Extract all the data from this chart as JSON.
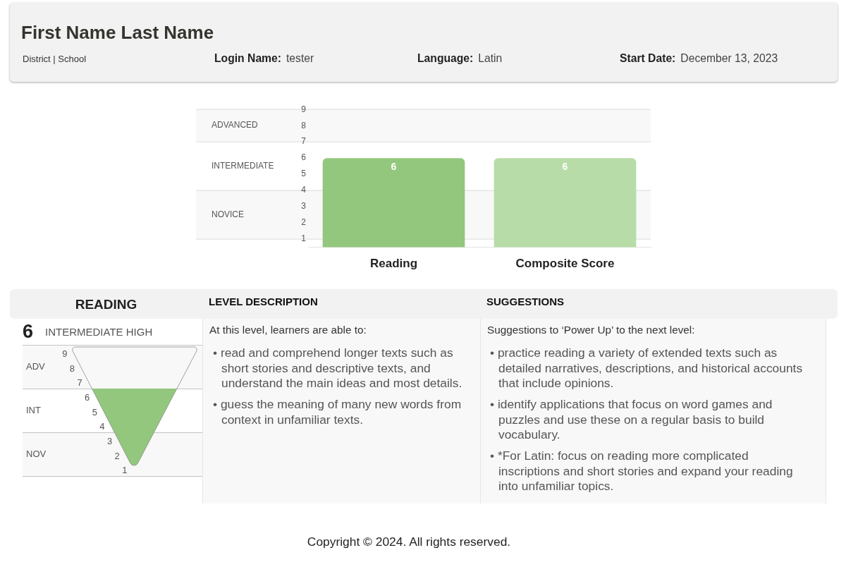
{
  "chart_data": [
    {
      "type": "other",
      "title": "First Name Last Name",
      "annotations": [
        "District | School",
        "Login Name:",
        "tester",
        "Language:",
        "Latin",
        "Start Date:",
        "December 13, 2023"
      ]
    },
    {
      "type": "bar",
      "categories": [
        "Reading",
        "Composite Score"
      ],
      "values": [
        6,
        6
      ],
      "colors": [
        "#93c77d",
        "#b7dca7"
      ],
      "ylim": [
        0.5,
        9
      ],
      "yticks": [
        1,
        2,
        3,
        4,
        5,
        6,
        7,
        8,
        9
      ],
      "data_labels": true,
      "bands": [
        {
          "axis": "y",
          "from": 7,
          "to": 9,
          "label": "ADVANCED",
          "color": "#f8f8f8"
        },
        {
          "axis": "y",
          "from": 1,
          "to": 4,
          "label": "NOVICE",
          "color": "#f8f8f8"
        }
      ],
      "ref_lines": [
        {
          "axis": "y",
          "value": 1,
          "color": "#e2e2e2"
        },
        {
          "axis": "y",
          "value": 4,
          "color": "#e2e2e2"
        },
        {
          "axis": "y",
          "value": 7,
          "color": "#e2e2e2"
        }
      ],
      "annotations": [
        "INTERMEDIATE"
      ]
    },
    {
      "type": "other",
      "title": "READING",
      "subtitle": "INTERMEDIATE HIGH",
      "values": [
        6
      ],
      "color": "#93c77d",
      "data_labels": true,
      "y_categories": [
        "ADV",
        "INT",
        "NOV"
      ],
      "annotations": [
        "9",
        "8",
        "7",
        "6",
        "5",
        "4",
        "3",
        "2",
        "1"
      ]
    },
    {
      "type": "other",
      "title": "LEVEL DESCRIPTION",
      "subtitle": "At this level, learners are able to:",
      "annotations": [
        "• read and comprehend longer texts such as short stories and descriptive texts, and understand the main ideas and most details.",
        "• guess the meaning of many new words from context in unfamiliar texts."
      ]
    },
    {
      "type": "other",
      "title": "SUGGESTIONS",
      "subtitle": "Suggestions to ‘Power Up’ to the next level:",
      "annotations": [
        "• practice reading a variety of extended texts such as detailed narratives, descriptions, and historical accounts that include opinions.",
        "• identify applications that focus on word games and puzzles and use these on a regular basis to build vocabulary.",
        "• *For Latin: focus on reading more complicated inscriptions and short stories and expand your reading into unfamiliar topics."
      ]
    },
    {
      "type": "other",
      "annotations": [
        "Copyright © 2024. All rights reserved."
      ]
    }
  ]
}
